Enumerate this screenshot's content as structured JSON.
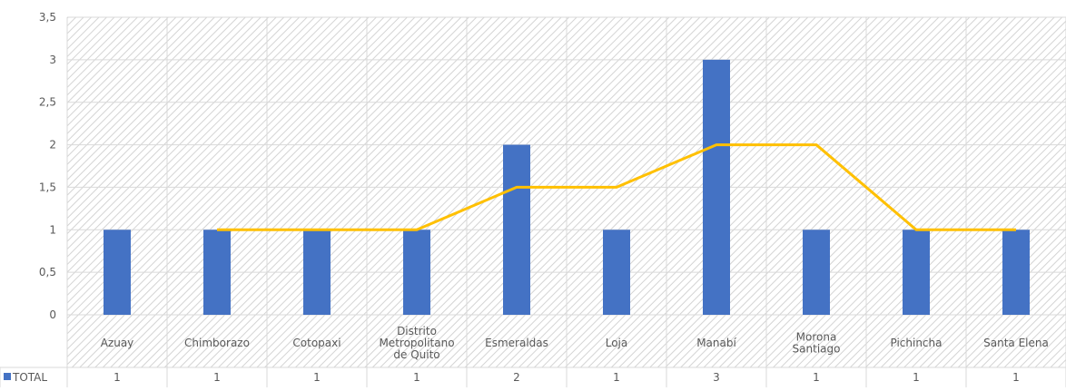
{
  "chart_data": {
    "type": "bar",
    "categories": [
      "Azuay",
      "Chimborazo",
      "Cotopaxi",
      "Distrito Metropolitano de Quito",
      "Esmeraldas",
      "Loja",
      "Manabí",
      "Morona Santiago",
      "Pichincha",
      "Santa Elena"
    ],
    "category_lines": [
      [
        "Azuay"
      ],
      [
        "Chimborazo"
      ],
      [
        "Cotopaxi"
      ],
      [
        "Distrito",
        "Metropolitano",
        "de Quito"
      ],
      [
        "Esmeraldas"
      ],
      [
        "Loja"
      ],
      [
        "Manabí"
      ],
      [
        "Morona",
        "Santiago"
      ],
      [
        "Pichincha"
      ],
      [
        "Santa Elena"
      ]
    ],
    "series": [
      {
        "name": "TOTAL",
        "values": [
          1,
          1,
          1,
          1,
          2,
          1,
          3,
          1,
          1,
          1
        ],
        "color": "#4472C4"
      }
    ],
    "moving_average": {
      "values": [
        null,
        1,
        1,
        1,
        1.5,
        1.5,
        2,
        2,
        1,
        1
      ],
      "color": "#FFC000"
    },
    "y_ticks": [
      "0",
      "0,5",
      "1",
      "1,5",
      "2",
      "2,5",
      "3",
      "3,5"
    ],
    "ylim": [
      0,
      3.5
    ],
    "grid": true,
    "data_table": true,
    "legend_placement": "data-table-left"
  }
}
